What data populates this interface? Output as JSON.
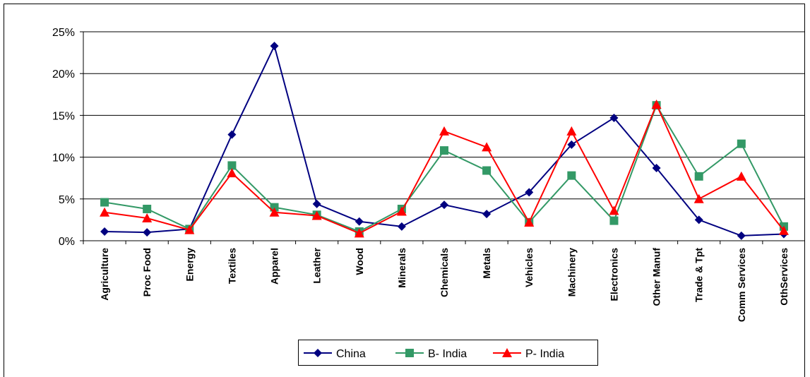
{
  "chart_data": {
    "type": "line",
    "categories": [
      "Agriculture",
      "Proc Food",
      "Energy",
      "Textiles",
      "Apparel",
      "Leather",
      "Wood",
      "Minerals",
      "Chemicals",
      "Metals",
      "Vehicles",
      "Machinery",
      "Electronics",
      "Other Manuf",
      "Trade & Tpt",
      "Comm Services",
      "OthServices"
    ],
    "series": [
      {
        "name": "China",
        "color": "#000080",
        "marker": "diamond",
        "values": [
          1.1,
          1.0,
          1.4,
          12.7,
          23.3,
          4.4,
          2.3,
          1.7,
          4.3,
          3.2,
          5.8,
          11.5,
          14.7,
          8.7,
          2.5,
          0.6,
          0.8
        ]
      },
      {
        "name": "B- India",
        "color": "#339966",
        "marker": "square",
        "values": [
          4.6,
          3.8,
          1.4,
          9.0,
          4.0,
          3.1,
          1.1,
          3.8,
          10.8,
          8.4,
          2.2,
          7.8,
          2.4,
          16.2,
          7.7,
          11.6,
          1.7
        ]
      },
      {
        "name": "P- India",
        "color": "#ff0000",
        "marker": "triangle",
        "values": [
          3.4,
          2.7,
          1.3,
          8.1,
          3.4,
          3.0,
          0.9,
          3.5,
          13.1,
          11.2,
          2.2,
          13.1,
          3.6,
          16.3,
          5.0,
          7.7,
          1.2
        ]
      }
    ],
    "ylim": [
      0,
      25
    ],
    "yticks": [
      {
        "value": 0,
        "label": "0%"
      },
      {
        "value": 5,
        "label": "5%"
      },
      {
        "value": 10,
        "label": "10%"
      },
      {
        "value": 15,
        "label": "15%"
      },
      {
        "value": 20,
        "label": "20%"
      },
      {
        "value": 25,
        "label": "25%"
      }
    ],
    "grid": true,
    "legend": "bottom"
  }
}
